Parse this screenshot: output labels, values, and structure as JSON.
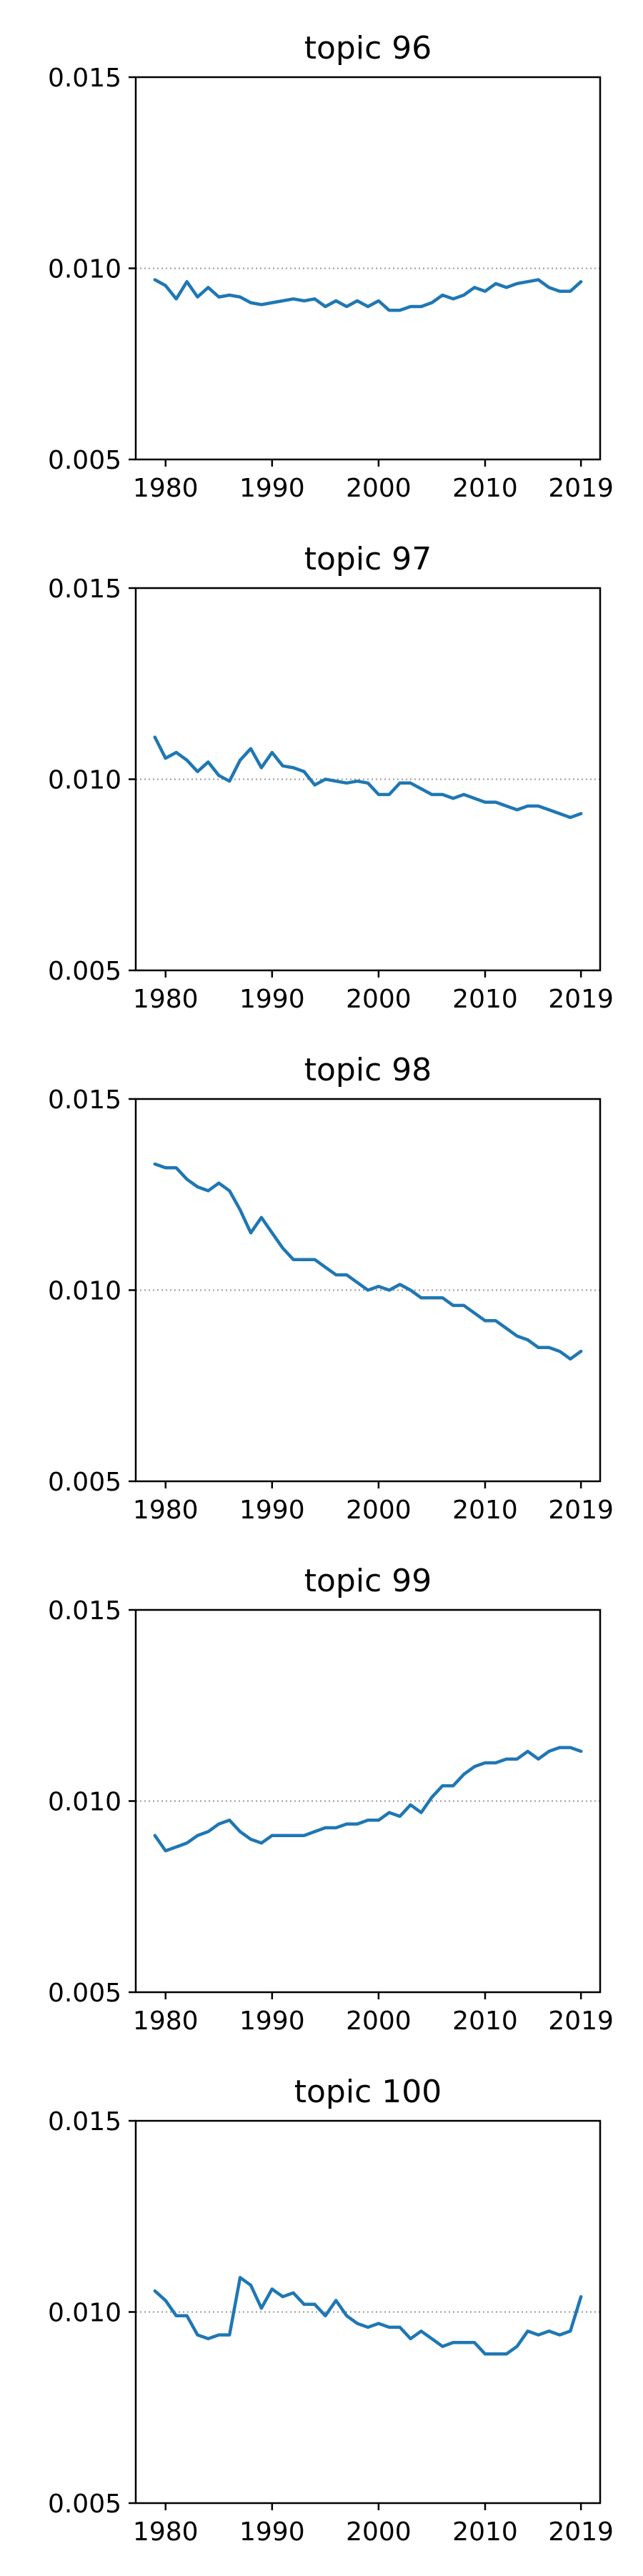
{
  "colors": {
    "line": "#1f77b4",
    "reference_line": "#999999",
    "axes": "#000000",
    "background": "#ffffff"
  },
  "chart_data": [
    {
      "type": "line",
      "title": "topic 96",
      "x": [
        1979,
        1980,
        1981,
        1982,
        1983,
        1984,
        1985,
        1986,
        1987,
        1988,
        1989,
        1990,
        1991,
        1992,
        1993,
        1994,
        1995,
        1996,
        1997,
        1998,
        1999,
        2000,
        2001,
        2002,
        2003,
        2004,
        2005,
        2006,
        2007,
        2008,
        2009,
        2010,
        2011,
        2012,
        2013,
        2014,
        2015,
        2016,
        2017,
        2018,
        2019
      ],
      "values": [
        0.0097,
        0.00955,
        0.0092,
        0.00965,
        0.00925,
        0.0095,
        0.00925,
        0.0093,
        0.00925,
        0.0091,
        0.00905,
        0.0091,
        0.00915,
        0.0092,
        0.00915,
        0.0092,
        0.009,
        0.00915,
        0.009,
        0.00915,
        0.009,
        0.00915,
        0.0089,
        0.0089,
        0.009,
        0.009,
        0.0091,
        0.0093,
        0.0092,
        0.0093,
        0.0095,
        0.0094,
        0.0096,
        0.0095,
        0.0096,
        0.00965,
        0.0097,
        0.0095,
        0.0094,
        0.0094,
        0.00965
      ],
      "xticks": [
        1980,
        1990,
        2000,
        2010,
        2019
      ],
      "yticks": [
        "0.005",
        "0.010",
        "0.015"
      ],
      "ylim": [
        0.005,
        0.015
      ],
      "reference": 0.01,
      "xlabel": "",
      "ylabel": ""
    },
    {
      "type": "line",
      "title": "topic 97",
      "x": [
        1979,
        1980,
        1981,
        1982,
        1983,
        1984,
        1985,
        1986,
        1987,
        1988,
        1989,
        1990,
        1991,
        1992,
        1993,
        1994,
        1995,
        1996,
        1997,
        1998,
        1999,
        2000,
        2001,
        2002,
        2003,
        2004,
        2005,
        2006,
        2007,
        2008,
        2009,
        2010,
        2011,
        2012,
        2013,
        2014,
        2015,
        2016,
        2017,
        2018,
        2019
      ],
      "values": [
        0.0111,
        0.01055,
        0.0107,
        0.0105,
        0.0102,
        0.01045,
        0.0101,
        0.00995,
        0.0105,
        0.0108,
        0.0103,
        0.0107,
        0.01035,
        0.0103,
        0.0102,
        0.00985,
        0.01,
        0.00995,
        0.0099,
        0.00995,
        0.0099,
        0.0096,
        0.0096,
        0.0099,
        0.0099,
        0.00975,
        0.0096,
        0.0096,
        0.0095,
        0.0096,
        0.0095,
        0.0094,
        0.0094,
        0.0093,
        0.0092,
        0.0093,
        0.0093,
        0.0092,
        0.0091,
        0.009,
        0.0091
      ],
      "xticks": [
        1980,
        1990,
        2000,
        2010,
        2019
      ],
      "yticks": [
        "0.005",
        "0.010",
        "0.015"
      ],
      "ylim": [
        0.005,
        0.015
      ],
      "reference": 0.01,
      "xlabel": "",
      "ylabel": ""
    },
    {
      "type": "line",
      "title": "topic 98",
      "x": [
        1979,
        1980,
        1981,
        1982,
        1983,
        1984,
        1985,
        1986,
        1987,
        1988,
        1989,
        1990,
        1991,
        1992,
        1993,
        1994,
        1995,
        1996,
        1997,
        1998,
        1999,
        2000,
        2001,
        2002,
        2003,
        2004,
        2005,
        2006,
        2007,
        2008,
        2009,
        2010,
        2011,
        2012,
        2013,
        2014,
        2015,
        2016,
        2017,
        2018,
        2019
      ],
      "values": [
        0.0133,
        0.0132,
        0.0132,
        0.0129,
        0.0127,
        0.0126,
        0.0128,
        0.0126,
        0.0121,
        0.0115,
        0.0119,
        0.0115,
        0.0111,
        0.0108,
        0.0108,
        0.0108,
        0.0106,
        0.0104,
        0.0104,
        0.0102,
        0.01,
        0.0101,
        0.01,
        0.01015,
        0.01,
        0.0098,
        0.0098,
        0.0098,
        0.0096,
        0.0096,
        0.0094,
        0.0092,
        0.0092,
        0.009,
        0.0088,
        0.0087,
        0.0085,
        0.0085,
        0.0084,
        0.0082,
        0.0084
      ],
      "xticks": [
        1980,
        1990,
        2000,
        2010,
        2019
      ],
      "yticks": [
        "0.005",
        "0.010",
        "0.015"
      ],
      "ylim": [
        0.005,
        0.015
      ],
      "reference": 0.01,
      "xlabel": "",
      "ylabel": ""
    },
    {
      "type": "line",
      "title": "topic 99",
      "x": [
        1979,
        1980,
        1981,
        1982,
        1983,
        1984,
        1985,
        1986,
        1987,
        1988,
        1989,
        1990,
        1991,
        1992,
        1993,
        1994,
        1995,
        1996,
        1997,
        1998,
        1999,
        2000,
        2001,
        2002,
        2003,
        2004,
        2005,
        2006,
        2007,
        2008,
        2009,
        2010,
        2011,
        2012,
        2013,
        2014,
        2015,
        2016,
        2017,
        2018,
        2019
      ],
      "values": [
        0.0091,
        0.0087,
        0.0088,
        0.0089,
        0.0091,
        0.0092,
        0.0094,
        0.0095,
        0.0092,
        0.009,
        0.0089,
        0.0091,
        0.0091,
        0.0091,
        0.0091,
        0.0092,
        0.0093,
        0.0093,
        0.0094,
        0.0094,
        0.0095,
        0.0095,
        0.0097,
        0.0096,
        0.0099,
        0.0097,
        0.0101,
        0.0104,
        0.0104,
        0.0107,
        0.0109,
        0.011,
        0.011,
        0.0111,
        0.0111,
        0.0113,
        0.0111,
        0.0113,
        0.0114,
        0.0114,
        0.0113
      ],
      "xticks": [
        1980,
        1990,
        2000,
        2010,
        2019
      ],
      "yticks": [
        "0.005",
        "0.010",
        "0.015"
      ],
      "ylim": [
        0.005,
        0.015
      ],
      "reference": 0.01,
      "xlabel": "",
      "ylabel": ""
    },
    {
      "type": "line",
      "title": "topic 100",
      "x": [
        1979,
        1980,
        1981,
        1982,
        1983,
        1984,
        1985,
        1986,
        1987,
        1988,
        1989,
        1990,
        1991,
        1992,
        1993,
        1994,
        1995,
        1996,
        1997,
        1998,
        1999,
        2000,
        2001,
        2002,
        2003,
        2004,
        2005,
        2006,
        2007,
        2008,
        2009,
        2010,
        2011,
        2012,
        2013,
        2014,
        2015,
        2016,
        2017,
        2018,
        2019
      ],
      "values": [
        0.01055,
        0.0103,
        0.0099,
        0.0099,
        0.0094,
        0.0093,
        0.0094,
        0.0094,
        0.0109,
        0.0107,
        0.0101,
        0.0106,
        0.0104,
        0.0105,
        0.0102,
        0.0102,
        0.0099,
        0.0103,
        0.0099,
        0.0097,
        0.0096,
        0.0097,
        0.0096,
        0.0096,
        0.0093,
        0.0095,
        0.0093,
        0.0091,
        0.0092,
        0.0092,
        0.0092,
        0.0089,
        0.0089,
        0.0089,
        0.0091,
        0.0095,
        0.0094,
        0.0095,
        0.0094,
        0.0095,
        0.0104
      ],
      "xticks": [
        1980,
        1990,
        2000,
        2010,
        2019
      ],
      "yticks": [
        "0.005",
        "0.010",
        "0.015"
      ],
      "ylim": [
        0.005,
        0.015
      ],
      "reference": 0.01,
      "xlabel": "",
      "ylabel": ""
    }
  ]
}
